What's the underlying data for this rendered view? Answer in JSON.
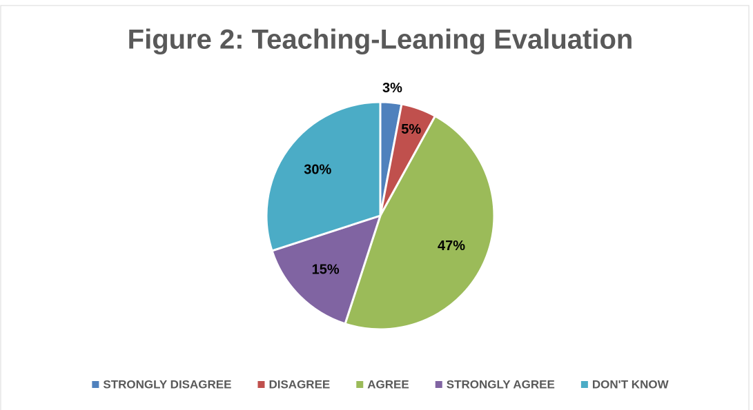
{
  "chart_data": {
    "type": "pie",
    "title": "Figure 2: Teaching-Leaning Evaluation",
    "categories": [
      "STRONGLY DISAGREE",
      "DISAGREE",
      "AGREE",
      "STRONGLY AGREE",
      "DON'T KNOW"
    ],
    "values": [
      3,
      5,
      47,
      15,
      30
    ],
    "value_labels": [
      "3%",
      "5%",
      "47%",
      "15%",
      "30%"
    ],
    "colors": [
      "#4f81bd",
      "#c0504d",
      "#9bbb59",
      "#8064a2",
      "#4bacc6"
    ],
    "legend": "bottom"
  }
}
